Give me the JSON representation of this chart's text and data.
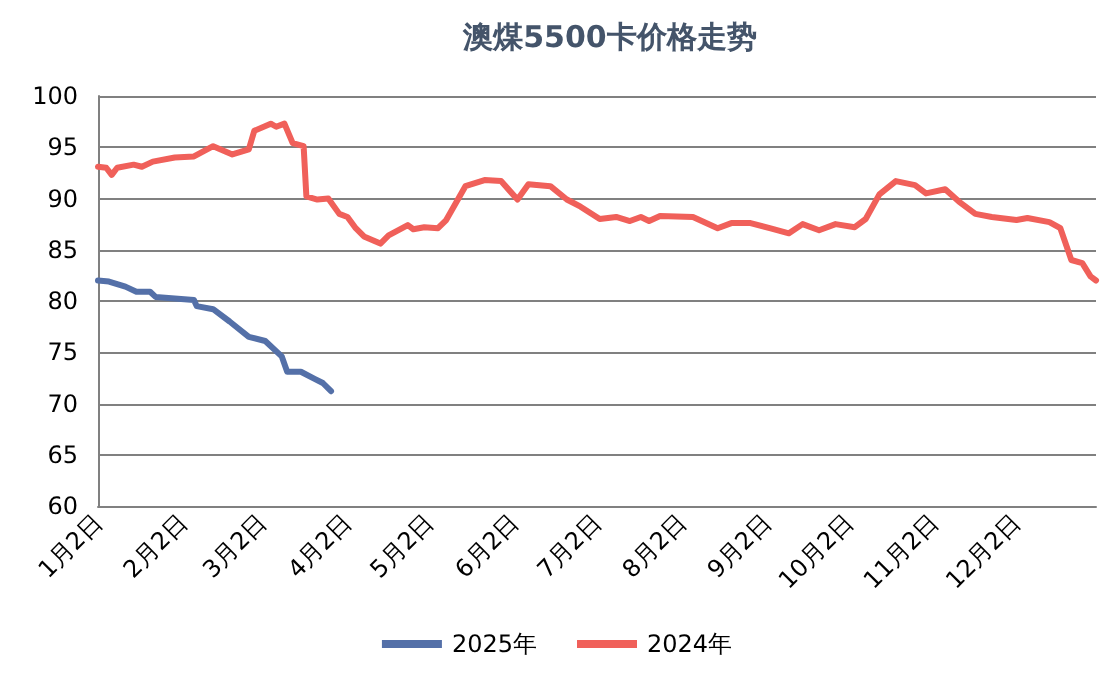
{
  "chart_data": {
    "type": "line",
    "title": "澳煤5500卡价格走势",
    "xlim": [
      "--01-02",
      "--12-31"
    ],
    "xticks": [
      {
        "value": "--01-02",
        "label": "1月2日"
      },
      {
        "value": "--02-02",
        "label": "2月2日"
      },
      {
        "value": "--03-02",
        "label": "3月2日"
      },
      {
        "value": "--04-02",
        "label": "4月2日"
      },
      {
        "value": "--05-02",
        "label": "5月2日"
      },
      {
        "value": "--06-02",
        "label": "6月2日"
      },
      {
        "value": "--07-02",
        "label": "7月2日"
      },
      {
        "value": "--08-02",
        "label": "8月2日"
      },
      {
        "value": "--09-02",
        "label": "9月2日"
      },
      {
        "value": "--10-02",
        "label": "10月2日"
      },
      {
        "value": "--11-02",
        "label": "11月2日"
      },
      {
        "value": "--12-02",
        "label": "12月2日"
      }
    ],
    "ylim": [
      60,
      100
    ],
    "yticks": [
      60,
      65,
      70,
      75,
      80,
      85,
      90,
      95,
      100
    ],
    "grid": "y",
    "legend": "bottom",
    "marker": "none",
    "line_style": "solid",
    "series": [
      {
        "name": "2025年",
        "color": "#5470a8",
        "x": [
          "--01-02",
          "--01-06",
          "--01-12",
          "--01-16",
          "--01-21",
          "--01-23",
          "--02-06",
          "--02-07",
          "--02-13",
          "--02-19",
          "--02-26",
          "--03-03",
          "--03-09",
          "--03-11",
          "--03-16",
          "--03-21",
          "--03-24",
          "--03-27"
        ],
        "values": [
          82.0,
          81.9,
          81.4,
          80.9,
          80.9,
          80.4,
          80.1,
          79.5,
          79.2,
          78.0,
          76.5,
          76.1,
          74.6,
          73.1,
          73.1,
          72.4,
          72.0,
          71.2
        ]
      },
      {
        "name": "2024年",
        "color": "#f0605a",
        "x": [
          "--01-02",
          "--01-05",
          "--01-07",
          "--01-09",
          "--01-15",
          "--01-18",
          "--01-22",
          "--01-30",
          "--02-06",
          "--02-13",
          "--02-20",
          "--02-26",
          "--02-28",
          "--03-05",
          "--03-07",
          "--03-10",
          "--03-13",
          "--03-17",
          "--03-18",
          "--03-22",
          "--03-26",
          "--03-30",
          "--04-02",
          "--04-05",
          "--04-08",
          "--04-14",
          "--04-17",
          "--04-24",
          "--04-26",
          "--04-30",
          "--05-05",
          "--05-08",
          "--05-15",
          "--05-22",
          "--05-28",
          "--06-03",
          "--06-07",
          "--06-15",
          "--06-21",
          "--06-26",
          "--07-03",
          "--07-09",
          "--07-14",
          "--07-18",
          "--07-21",
          "--07-25",
          "--08-06",
          "--08-15",
          "--08-20",
          "--08-27",
          "--09-03",
          "--09-10",
          "--09-15",
          "--09-21",
          "--09-27",
          "--10-04",
          "--10-08",
          "--10-13",
          "--10-19",
          "--10-26",
          "--10-30",
          "--11-06",
          "--11-11",
          "--11-17",
          "--11-23",
          "--12-02",
          "--12-06",
          "--12-14",
          "--12-18",
          "--12-22",
          "--12-26",
          "--12-29",
          "--12-31"
        ],
        "values": [
          93.1,
          93.0,
          92.3,
          93.0,
          93.3,
          93.1,
          93.6,
          94.0,
          94.1,
          95.1,
          94.3,
          94.8,
          96.6,
          97.3,
          97.0,
          97.3,
          95.4,
          95.1,
          90.2,
          89.9,
          90.0,
          88.5,
          88.2,
          87.1,
          86.3,
          85.6,
          86.4,
          87.4,
          87.0,
          87.2,
          87.1,
          87.9,
          91.2,
          91.8,
          91.7,
          89.9,
          91.4,
          91.2,
          89.9,
          89.2,
          88.0,
          88.2,
          87.8,
          88.2,
          87.8,
          88.3,
          88.2,
          87.1,
          87.6,
          87.6,
          87.1,
          86.6,
          87.5,
          86.9,
          87.5,
          87.2,
          88.0,
          90.4,
          91.7,
          91.3,
          90.5,
          90.9,
          89.7,
          88.5,
          88.2,
          87.9,
          88.1,
          87.7,
          87.1,
          84.0,
          83.7,
          82.4,
          82.0
        ]
      }
    ]
  }
}
